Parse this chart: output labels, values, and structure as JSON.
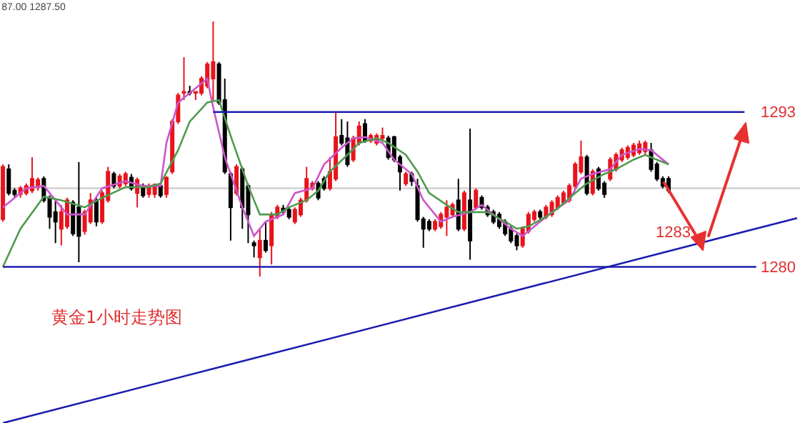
{
  "chart_data": {
    "type": "candlestick",
    "title": "87.00 1287.50",
    "annotations": [
      "黄金1小时走势图",
      "1283"
    ],
    "categories": [
      null,
      null,
      null,
      null,
      null,
      null,
      null,
      null,
      null,
      null,
      null,
      null,
      null,
      null,
      null,
      null,
      null,
      null,
      null,
      null,
      null,
      null,
      null,
      null,
      null,
      null,
      null,
      null,
      null,
      null,
      null,
      null,
      null,
      null,
      null,
      null,
      null,
      null,
      null,
      null,
      null,
      null,
      null,
      null,
      null,
      null,
      null,
      null,
      null,
      null,
      null,
      null,
      null,
      null,
      null,
      null,
      null,
      null,
      null,
      null,
      null,
      null,
      null,
      null,
      null,
      null,
      null,
      null,
      null,
      null,
      null,
      null,
      null,
      null,
      null,
      null,
      null,
      null,
      null,
      null,
      null,
      null,
      null,
      null,
      null,
      null,
      null,
      null,
      null,
      null,
      null,
      null,
      null,
      null,
      null,
      null,
      null,
      null,
      null,
      null,
      null,
      null,
      null,
      null,
      null,
      null,
      null,
      null,
      null,
      null,
      null,
      null,
      null,
      null,
      null,
      null,
      null,
      null,
      null,
      null,
      null,
      null,
      null,
      null,
      null,
      null,
      null,
      null,
      null,
      null,
      null,
      null,
      null,
      null,
      null,
      null,
      null
    ],
    "ohlc": [
      [
        1284.0,
        1288.6,
        1283.8,
        1288.4
      ],
      [
        1288.2,
        1288.6,
        1286.0,
        1286.2
      ],
      [
        1286.4,
        1286.6,
        1285.8,
        1286.1
      ],
      [
        1286.1,
        1286.8,
        1285.8,
        1286.6
      ],
      [
        1286.2,
        1287.0,
        1286.0,
        1286.8
      ],
      [
        1286.4,
        1289.2,
        1286.2,
        1287.4
      ],
      [
        1286.7,
        1287.5,
        1286.4,
        1287.3
      ],
      [
        1287.4,
        1287.6,
        1285.4,
        1285.6
      ],
      [
        1285.8,
        1286.0,
        1283.2,
        1284.2
      ],
      [
        1284.6,
        1285.6,
        1282.0,
        1283.8
      ],
      [
        1283.2,
        1285.2,
        1281.8,
        1284.6
      ],
      [
        1283.4,
        1285.8,
        1283.2,
        1285.6
      ],
      [
        1285.4,
        1285.6,
        1282.6,
        1282.8
      ],
      [
        1285.0,
        1288.8,
        1280.4,
        1282.6
      ],
      [
        1283.0,
        1284.8,
        1282.7,
        1284.6
      ],
      [
        1283.8,
        1286.2,
        1283.6,
        1285.6
      ],
      [
        1285.6,
        1285.8,
        1283.4,
        1283.8
      ],
      [
        1283.8,
        1286.4,
        1283.6,
        1286.2
      ],
      [
        1285.6,
        1288.4,
        1285.4,
        1288.0
      ],
      [
        1287.8,
        1288.0,
        1286.6,
        1286.8
      ],
      [
        1286.8,
        1287.8,
        1286.6,
        1287.6
      ],
      [
        1287.0,
        1288.0,
        1286.8,
        1287.8
      ],
      [
        1287.5,
        1287.8,
        1286.4,
        1286.6
      ],
      [
        1286.2,
        1287.5,
        1285.0,
        1287.3
      ],
      [
        1286.8,
        1287.0,
        1285.8,
        1286.0
      ],
      [
        1286.1,
        1287.0,
        1285.8,
        1286.8
      ],
      [
        1286.1,
        1287.0,
        1285.8,
        1286.9
      ],
      [
        1286.8,
        1287.0,
        1285.8,
        1286.0
      ],
      [
        1286.1,
        1287.6,
        1285.8,
        1287.5
      ],
      [
        1288.0,
        1292.4,
        1287.8,
        1292.2
      ],
      [
        1292.2,
        1294.6,
        1292.0,
        1294.4
      ],
      [
        1294.6,
        1297.6,
        1294.0,
        1294.7
      ],
      [
        1294.7,
        1295.2,
        1294.4,
        1294.6
      ],
      [
        1294.6,
        1294.7,
        1294.0,
        1294.7
      ],
      [
        1294.6,
        1296.0,
        1294.4,
        1295.8
      ],
      [
        1295.2,
        1297.2,
        1295.0,
        1297.0
      ],
      [
        1295.8,
        1300.6,
        1294.0,
        1297.2
      ],
      [
        1297.0,
        1297.2,
        1293.6,
        1293.8
      ],
      [
        1294.0,
        1295.8,
        1287.8,
        1288.0
      ],
      [
        1287.8,
        1288.0,
        1282.2,
        1285.0
      ],
      [
        1286.2,
        1288.6,
        1286.0,
        1288.4
      ],
      [
        1288.2,
        1288.4,
        1283.2,
        1285.0
      ],
      [
        1286.8,
        1287.0,
        1282.0,
        1284.4
      ],
      [
        1282.0,
        1282.2,
        1280.8,
        1281.8
      ],
      [
        1280.8,
        1283.2,
        1279.2,
        1282.2
      ],
      [
        1282.2,
        1283.8,
        1281.2,
        1281.4
      ],
      [
        1281.8,
        1284.6,
        1280.2,
        1284.4
      ],
      [
        1284.2,
        1285.2,
        1284.0,
        1285.0
      ],
      [
        1284.9,
        1285.2,
        1284.4,
        1284.6
      ],
      [
        1284.8,
        1285.0,
        1284.0,
        1284.2
      ],
      [
        1283.8,
        1285.0,
        1283.6,
        1284.8
      ],
      [
        1284.4,
        1285.8,
        1284.2,
        1285.6
      ],
      [
        1285.6,
        1288.4,
        1285.4,
        1287.4
      ],
      [
        1286.6,
        1287.2,
        1286.4,
        1287.0
      ],
      [
        1287.0,
        1287.2,
        1285.6,
        1285.8
      ],
      [
        1287.4,
        1287.6,
        1286.4,
        1286.6
      ],
      [
        1286.6,
        1289.2,
        1286.4,
        1288.0
      ],
      [
        1287.4,
        1293.0,
        1287.2,
        1290.9
      ],
      [
        1291.0,
        1292.4,
        1290.2,
        1290.4
      ],
      [
        1290.8,
        1292.2,
        1288.4,
        1288.6
      ],
      [
        1289.0,
        1291.0,
        1288.8,
        1290.8
      ],
      [
        1290.4,
        1292.2,
        1290.2,
        1291.8
      ],
      [
        1292.0,
        1292.4,
        1290.4,
        1290.6
      ],
      [
        1290.6,
        1291.2,
        1290.4,
        1291.0
      ],
      [
        1290.4,
        1291.2,
        1290.2,
        1291.0
      ],
      [
        1290.8,
        1291.7,
        1290.6,
        1291.0
      ],
      [
        1290.8,
        1291.0,
        1289.0,
        1289.2
      ],
      [
        1290.9,
        1291.0,
        1288.8,
        1289.0
      ],
      [
        1289.2,
        1289.4,
        1286.4,
        1288.0
      ],
      [
        1287.0,
        1288.0,
        1286.8,
        1287.8
      ],
      [
        1287.8,
        1288.0,
        1286.8,
        1287.2
      ],
      [
        1286.8,
        1287.4,
        1283.8,
        1284.0
      ],
      [
        1284.0,
        1284.2,
        1281.6,
        1283.2
      ],
      [
        1283.8,
        1284.0,
        1283.0,
        1283.2
      ],
      [
        1283.2,
        1284.0,
        1283.0,
        1283.8
      ],
      [
        1283.4,
        1284.6,
        1283.2,
        1284.4
      ],
      [
        1284.2,
        1285.6,
        1282.6,
        1285.0
      ],
      [
        1284.4,
        1285.4,
        1284.2,
        1285.2
      ],
      [
        1285.6,
        1287.4,
        1283.0,
        1283.2
      ],
      [
        1283.2,
        1286.4,
        1283.0,
        1286.2
      ],
      [
        1285.6,
        1291.6,
        1280.6,
        1282.2
      ],
      [
        1285.0,
        1286.6,
        1284.8,
        1286.4
      ],
      [
        1285.8,
        1286.0,
        1284.8,
        1285.0
      ],
      [
        1285.0,
        1285.2,
        1284.2,
        1284.4
      ],
      [
        1284.6,
        1284.8,
        1283.6,
        1283.8
      ],
      [
        1284.4,
        1284.6,
        1283.2,
        1283.4
      ],
      [
        1283.8,
        1284.0,
        1282.6,
        1282.8
      ],
      [
        1283.2,
        1283.4,
        1282.0,
        1282.2
      ],
      [
        1282.6,
        1282.8,
        1281.4,
        1281.8
      ],
      [
        1281.8,
        1283.4,
        1281.6,
        1283.2
      ],
      [
        1283.0,
        1284.6,
        1282.8,
        1284.4
      ],
      [
        1284.0,
        1284.8,
        1283.8,
        1284.6
      ],
      [
        1284.6,
        1284.8,
        1283.8,
        1284.2
      ],
      [
        1284.2,
        1285.2,
        1284.0,
        1285.0
      ],
      [
        1284.4,
        1285.6,
        1284.2,
        1285.4
      ],
      [
        1285.0,
        1286.0,
        1284.8,
        1285.8
      ],
      [
        1285.4,
        1286.4,
        1285.2,
        1286.2
      ],
      [
        1285.6,
        1287.0,
        1285.4,
        1286.8
      ],
      [
        1286.8,
        1288.8,
        1286.6,
        1288.6
      ],
      [
        1288.0,
        1290.6,
        1287.8,
        1289.2
      ],
      [
        1289.2,
        1289.4,
        1286.0,
        1286.2
      ],
      [
        1286.2,
        1288.2,
        1286.0,
        1288.0
      ],
      [
        1288.2,
        1288.4,
        1286.4,
        1286.6
      ],
      [
        1287.0,
        1287.2,
        1285.8,
        1286.1
      ],
      [
        1287.4,
        1289.2,
        1287.2,
        1289.0
      ],
      [
        1288.2,
        1289.6,
        1288.0,
        1289.4
      ],
      [
        1289.0,
        1290.0,
        1288.8,
        1289.8
      ],
      [
        1289.2,
        1290.2,
        1289.0,
        1290.0
      ],
      [
        1289.4,
        1290.4,
        1289.2,
        1290.2
      ],
      [
        1289.6,
        1290.6,
        1289.4,
        1290.3
      ],
      [
        1289.7,
        1290.6,
        1289.4,
        1290.4
      ],
      [
        1289.8,
        1290.4,
        1288.0,
        1288.2
      ],
      [
        1288.6,
        1288.8,
        1287.2,
        1287.4
      ],
      [
        1287.4,
        1287.6,
        1286.6,
        1286.8
      ],
      [
        1287.4,
        1287.6,
        1286.2,
        1286.4
      ],
      null,
      null,
      null,
      null,
      null,
      null,
      null,
      null,
      null,
      null,
      null,
      null,
      null,
      null,
      null,
      null,
      null,
      null,
      null,
      null,
      null,
      null
    ],
    "colors": [
      "#e8141c",
      "#000000",
      "#000000",
      "#e8141c",
      "#e8141c",
      "#e8141c",
      "#e8141c",
      "#000000",
      "#000000",
      "#000000",
      "#e8141c",
      "#e8141c",
      "#000000",
      "#000000",
      "#e8141c",
      "#e8141c",
      "#000000",
      "#e8141c",
      "#e8141c",
      "#000000",
      "#e8141c",
      "#e8141c",
      "#000000",
      "#e8141c",
      "#000000",
      "#e8141c",
      "#e8141c",
      "#000000",
      "#e8141c",
      "#e8141c",
      "#e8141c",
      "#e8141c",
      "#000000",
      "#e8141c",
      "#e8141c",
      "#e8141c",
      "#e8141c",
      "#000000",
      "#000000",
      "#000000",
      "#e8141c",
      "#000000",
      "#000000",
      "#000000",
      "#e8141c",
      "#000000",
      "#e8141c",
      "#e8141c",
      "#000000",
      "#000000",
      "#e8141c",
      "#e8141c",
      "#e8141c",
      "#e8141c",
      "#000000",
      "#000000",
      "#e8141c",
      "#e8141c",
      "#000000",
      "#000000",
      "#e8141c",
      "#e8141c",
      "#000000",
      "#e8141c",
      "#e8141c",
      "#e8141c",
      "#000000",
      "#000000",
      "#000000",
      "#e8141c",
      "#000000",
      "#000000",
      "#000000",
      "#000000",
      "#e8141c",
      "#e8141c",
      "#e8141c",
      "#e8141c",
      "#000000",
      "#e8141c",
      "#000000",
      "#e8141c",
      "#000000",
      "#000000",
      "#000000",
      "#000000",
      "#000000",
      "#000000",
      "#000000",
      "#e8141c",
      "#e8141c",
      "#e8141c",
      "#000000",
      "#e8141c",
      "#e8141c",
      "#e8141c",
      "#e8141c",
      "#e8141c",
      "#e8141c",
      "#e8141c",
      "#000000",
      "#e8141c",
      "#000000",
      "#000000",
      "#e8141c",
      "#e8141c",
      "#e8141c",
      "#e8141c",
      "#e8141c",
      "#e8141c",
      "#e8141c",
      "#000000",
      "#000000",
      "#000000",
      "#000000",
      null,
      null,
      null,
      null,
      null,
      null,
      null,
      null,
      null,
      null,
      null,
      null,
      null,
      null,
      null,
      null,
      null,
      null,
      null,
      null,
      null,
      null
    ],
    "series": [
      {
        "type": "line",
        "color": "#cc55cc",
        "values": [
          1285.0,
          null,
          null,
          null,
          1286.6,
          null,
          null,
          1286.8,
          null,
          1285.6,
          null,
          1284.4,
          null,
          null,
          1284.4,
          null,
          null,
          1286.6,
          null,
          null,
          null,
          1287.2,
          null,
          null,
          1286.8,
          null,
          null,
          1286.8,
          1290.4,
          null,
          1293.8,
          null,
          null,
          1295.0,
          null,
          1295.8,
          1293.4,
          null,
          1289.2,
          null,
          null,
          1285.0,
          null,
          1282.6,
          null,
          1283.8,
          null,
          null,
          1284.4,
          null,
          1286.2,
          null,
          null,
          1286.6,
          null,
          1288.6,
          null,
          null,
          1290.0,
          null,
          1290.8,
          null,
          1290.9,
          null,
          null,
          1290.4,
          null,
          1289.0,
          null,
          null,
          1287.8,
          null,
          1285.6,
          null,
          null,
          1283.8,
          null,
          1284.2,
          null,
          null,
          1284.6,
          null,
          1285.2,
          null,
          1284.4,
          null,
          null,
          1283.2,
          null,
          1282.6,
          null,
          null,
          1283.8,
          null,
          1284.6,
          null,
          null,
          1285.6,
          null,
          1287.4,
          null,
          1287.8,
          null,
          null,
          1288.2,
          null,
          1289.4,
          null,
          null,
          1289.9,
          null,
          1289.8,
          null,
          null,
          1288.6,
          null,
          null,
          null,
          null,
          null,
          null,
          null,
          null,
          null,
          null,
          null,
          null,
          null,
          null,
          null,
          null,
          null,
          null,
          null,
          null,
          null,
          null
        ]
      },
      {
        "type": "line",
        "color": "#4f9a4f",
        "values": [
          1280.0,
          null,
          null,
          1283.2,
          null,
          null,
          null,
          1285.9,
          null,
          null,
          1285.6,
          null,
          null,
          null,
          1285.0,
          null,
          null,
          1285.8,
          null,
          null,
          null,
          1286.7,
          null,
          null,
          null,
          1286.7,
          null,
          1287.0,
          null,
          null,
          1289.8,
          null,
          1292.2,
          null,
          null,
          1293.8,
          null,
          1294.0,
          null,
          1291.0,
          null,
          null,
          1286.8,
          null,
          1284.4,
          null,
          null,
          1284.4,
          null,
          1285.0,
          null,
          null,
          1285.6,
          null,
          1286.4,
          null,
          1288.0,
          null,
          null,
          1289.4,
          null,
          1290.4,
          null,
          null,
          1290.8,
          null,
          1290.4,
          null,
          null,
          1289.4,
          null,
          1288.0,
          null,
          1286.2,
          null,
          null,
          1285.2,
          null,
          1284.6,
          null,
          null,
          1284.6,
          null,
          1284.6,
          null,
          null,
          1283.8,
          null,
          1283.2,
          null,
          1283.4,
          null,
          null,
          1284.2,
          null,
          1284.9,
          null,
          null,
          1286.2,
          null,
          1287.0,
          null,
          null,
          1287.8,
          null,
          1288.2,
          null,
          null,
          1289.0,
          null,
          1289.4,
          null,
          1289.0,
          null,
          1288.6,
          null,
          null,
          null,
          null,
          null,
          null,
          null,
          null,
          null,
          null,
          null,
          null,
          null,
          null,
          null,
          null,
          null,
          null,
          null,
          null,
          null,
          null
        ]
      },
      {
        "type": "line",
        "color": "#1c1cb0",
        "values": [
          null,
          null,
          null,
          null,
          null,
          null,
          null,
          null,
          null,
          null,
          null,
          null,
          null,
          null,
          null,
          null,
          null,
          null,
          null,
          null,
          null,
          null,
          null,
          null,
          null,
          null,
          null,
          null,
          null,
          null,
          null,
          null,
          null,
          null,
          null,
          null,
          1293,
          null,
          null,
          null,
          null,
          null,
          null,
          null,
          null,
          null,
          null,
          null,
          null,
          null,
          null,
          null,
          null,
          null,
          null,
          null,
          null,
          null,
          null,
          null,
          null,
          null,
          null,
          null,
          null,
          null,
          null,
          null,
          null,
          null,
          null,
          null,
          null,
          null,
          null,
          null,
          null,
          null,
          null,
          null,
          null,
          null,
          null,
          null,
          null,
          null,
          null,
          null,
          null,
          null,
          null,
          null,
          null,
          null,
          null,
          null,
          null,
          null,
          null,
          null,
          null,
          null,
          null,
          null,
          null,
          null,
          null,
          null,
          null,
          null,
          null,
          null,
          null,
          null,
          null,
          null,
          null,
          null,
          null,
          null,
          null,
          null,
          null,
          null,
          null,
          null,
          null,
          1293,
          null,
          null,
          null,
          null,
          null,
          null,
          null,
          null,
          null
        ]
      },
      {
        "type": "line",
        "color": "#1c1cb0",
        "values": [
          1280,
          null,
          null,
          null,
          null,
          null,
          null,
          null,
          null,
          null,
          null,
          null,
          null,
          null,
          null,
          null,
          null,
          null,
          null,
          null,
          null,
          null,
          null,
          null,
          null,
          null,
          null,
          null,
          null,
          null,
          null,
          null,
          null,
          null,
          null,
          null,
          null,
          null,
          null,
          null,
          null,
          null,
          null,
          null,
          null,
          null,
          null,
          null,
          null,
          null,
          null,
          null,
          null,
          null,
          null,
          null,
          null,
          null,
          null,
          null,
          null,
          null,
          null,
          null,
          null,
          null,
          null,
          null,
          null,
          null,
          null,
          null,
          null,
          null,
          null,
          null,
          null,
          null,
          null,
          null,
          null,
          null,
          null,
          null,
          null,
          null,
          null,
          null,
          null,
          null,
          null,
          null,
          null,
          null,
          null,
          null,
          null,
          null,
          null,
          null,
          null,
          null,
          null,
          null,
          null,
          null,
          null,
          null,
          null,
          null,
          null,
          null,
          null,
          null,
          null,
          null,
          null,
          null,
          null,
          null,
          null,
          null,
          null,
          null,
          null,
          null,
          null,
          null,
          null,
          1280,
          null,
          null,
          null,
          null,
          null,
          null,
          null
        ]
      },
      {
        "type": "line",
        "color": "#1c1cb0",
        "values": [
          1266.9,
          null,
          null,
          null,
          null,
          null,
          null,
          null,
          null,
          null,
          null,
          null,
          null,
          null,
          null,
          null,
          null,
          null,
          null,
          null,
          null,
          null,
          null,
          null,
          null,
          null,
          null,
          null,
          null,
          null,
          null,
          null,
          null,
          null,
          null,
          null,
          null,
          null,
          null,
          null,
          null,
          null,
          null,
          null,
          null,
          null,
          null,
          null,
          null,
          null,
          null,
          null,
          null,
          null,
          null,
          null,
          null,
          null,
          null,
          null,
          null,
          null,
          null,
          null,
          null,
          null,
          null,
          null,
          null,
          null,
          null,
          null,
          null,
          null,
          null,
          null,
          null,
          null,
          null,
          null,
          null,
          null,
          null,
          null,
          null,
          null,
          null,
          null,
          null,
          null,
          null,
          null,
          null,
          null,
          null,
          null,
          null,
          null,
          null,
          null,
          null,
          null,
          null,
          null,
          null,
          null,
          null,
          null,
          null,
          null,
          null,
          null,
          null,
          null,
          null,
          null,
          null,
          null,
          null,
          null,
          null,
          null,
          null,
          null,
          null,
          null,
          null,
          null,
          null,
          null,
          null,
          null,
          null,
          null,
          null,
          null,
          1284.1
        ]
      }
    ],
    "ref_lines": [
      {
        "axis": "y",
        "value": 1286.6,
        "color": "#d0d0d0"
      }
    ],
    "ylim": [
      1266.9,
      1302.4
    ],
    "yticks": [
      1280,
      1293
    ],
    "tick_labels": "y"
  }
}
